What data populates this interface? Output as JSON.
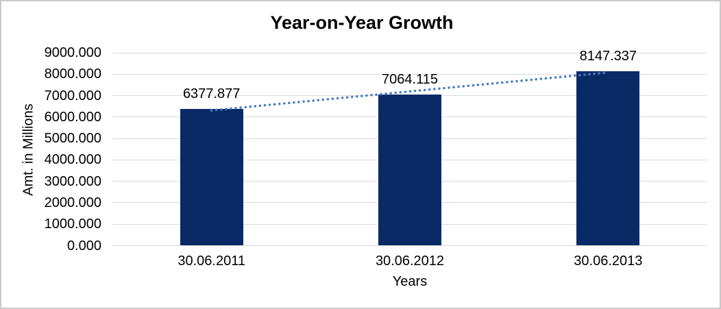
{
  "window": {
    "background_color": "#ffffff",
    "border_color": "#c9c9c9"
  },
  "chart_data": {
    "type": "bar",
    "title": "Year-on-Year Growth",
    "xlabel": "Years",
    "ylabel": "Amt. in Millions",
    "categories": [
      "30.06.2011",
      "30.06.2012",
      "30.06.2013"
    ],
    "values": [
      6377.877,
      7064.115,
      8147.337
    ],
    "value_labels": [
      "6377.877",
      "7064.115",
      "8147.337"
    ],
    "y_ticks": [
      "9000.000",
      "8000.000",
      "7000.000",
      "6000.000",
      "5000.000",
      "4000.000",
      "3000.000",
      "2000.000",
      "1000.000",
      "0.000"
    ],
    "ylim": [
      0,
      9000
    ],
    "grid": true,
    "legend": "none",
    "bar_color": "#0a2a66",
    "gridline_color": "#d9d9d9",
    "trendline": {
      "type": "linear",
      "style": "dotted",
      "color": "#4a7ec0",
      "start_value": 6311.7,
      "end_value": 8081.2
    }
  }
}
